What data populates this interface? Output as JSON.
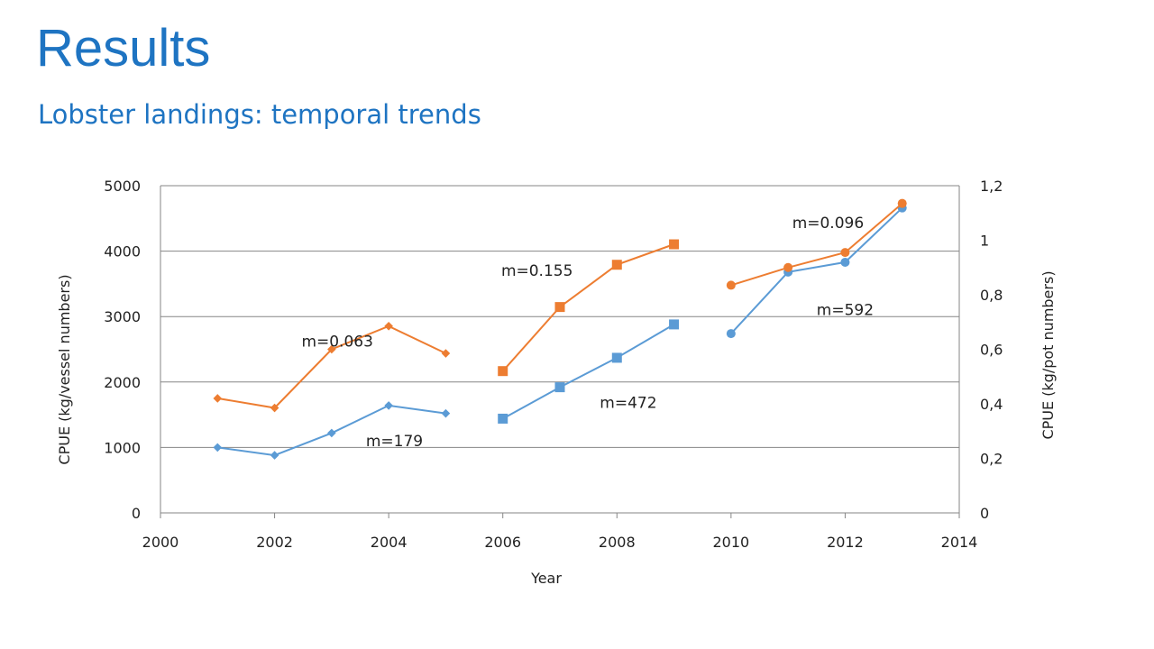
{
  "slide": {
    "title": "Results",
    "subtitle": "Lobster landings:  temporal trends"
  },
  "colors": {
    "title": "#1e74c2",
    "blue": "#5b9bd5",
    "orange": "#ed7d31",
    "grid": "#868686"
  },
  "chart_data": {
    "type": "line",
    "xlabel": "Year",
    "ylabel_left": "CPUE (kg/vessel numbers)",
    "ylabel_right": "CPUE (kg/pot numbers)",
    "xlim": [
      2000,
      2014
    ],
    "ylim_left": [
      0,
      5000
    ],
    "ylim_right": [
      0,
      1.2
    ],
    "x_ticks": [
      "2000",
      "2002",
      "2004",
      "2006",
      "2008",
      "2010",
      "2012",
      "2014"
    ],
    "y_left_ticks": [
      "0",
      "1000",
      "2000",
      "3000",
      "4000",
      "5000"
    ],
    "y_right_ticks": [
      "0",
      "0,2",
      "0,4",
      "0,6",
      "0,8",
      "1",
      "1,2"
    ],
    "grid": true,
    "series": [
      {
        "axis": "left",
        "color": "#5b9bd5",
        "marker": "diamond",
        "x": [
          2001,
          2002,
          2003,
          2004,
          2005
        ],
        "y": [
          1000,
          880,
          1220,
          1640,
          1520
        ]
      },
      {
        "axis": "right",
        "color": "#ed7d31",
        "marker": "diamond",
        "x": [
          2001,
          2002,
          2003,
          2004,
          2005
        ],
        "y": [
          0.42,
          0.385,
          0.6,
          0.685,
          0.585
        ]
      },
      {
        "axis": "left",
        "color": "#5b9bd5",
        "marker": "square",
        "x": [
          2006,
          2007,
          2008,
          2009
        ],
        "y": [
          1440,
          1920,
          2370,
          2880
        ]
      },
      {
        "axis": "right",
        "color": "#ed7d31",
        "marker": "square",
        "x": [
          2006,
          2007,
          2008,
          2009
        ],
        "y": [
          0.52,
          0.755,
          0.91,
          0.985
        ]
      },
      {
        "axis": "left",
        "color": "#5b9bd5",
        "marker": "circle",
        "x": [
          2010,
          2011,
          2012,
          2013
        ],
        "y": [
          2740,
          3680,
          3830,
          4660
        ]
      },
      {
        "axis": "right",
        "color": "#ed7d31",
        "marker": "circle",
        "x": [
          2010,
          2011,
          2012,
          2013
        ],
        "y": [
          0.835,
          0.9,
          0.955,
          1.135
        ]
      }
    ],
    "annotations": [
      {
        "text": "m=0.063",
        "x": 2003.1,
        "y_right": 0.63
      },
      {
        "text": "m=179",
        "x": 2004.1,
        "y_right": 0.265
      },
      {
        "text": "m=0.155",
        "x": 2006.6,
        "y_right": 0.89
      },
      {
        "text": "m=472",
        "x": 2008.2,
        "y_right": 0.405
      },
      {
        "text": "m=0.096",
        "x": 2011.7,
        "y_right": 1.065
      },
      {
        "text": "m=592",
        "x": 2012.0,
        "y_right": 0.745
      }
    ]
  }
}
